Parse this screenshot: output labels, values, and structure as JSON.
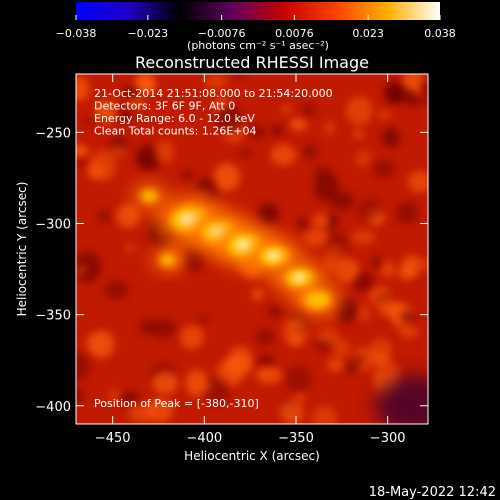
{
  "chart_data": {
    "type": "heatmap",
    "title": "Reconstructed RHESSI Image",
    "xlabel": "Heliocentric X (arcsec)",
    "ylabel": "Heliocentric Y (arcsec)",
    "xlim": [
      -470,
      -278
    ],
    "ylim": [
      -410,
      -218
    ],
    "x_ticks": [
      -450,
      -400,
      -350,
      -300
    ],
    "y_ticks": [
      -250,
      -300,
      -350,
      -400
    ],
    "x_tick_labels": [
      "−450",
      "−400",
      "−350",
      "−300"
    ],
    "y_tick_labels": [
      "−250",
      "−300",
      "−350",
      "−400"
    ],
    "colorbar": {
      "range": [
        -0.038,
        0.038
      ],
      "ticks": [
        -0.038,
        -0.023,
        -0.0076,
        0.0076,
        0.023,
        0.038
      ],
      "tick_labels": [
        "−0.038",
        "−0.023",
        "−0.0076",
        "0.0076",
        "0.023",
        "0.038"
      ],
      "unit_label": "(photons cm⁻² s⁻¹ asec⁻²)",
      "colors": [
        "#0000ff",
        "#1f00c8",
        "#000000",
        "#600060",
        "#c80000",
        "#ff4000",
        "#ffb000",
        "#ffffff"
      ]
    },
    "annotations": [
      "21-Oct-2014 21:51:08.000 to 21:54:20.000",
      "Detectors: 3F 6F 9F, Att 0",
      "Energy Range: 6.0 - 12.0 keV",
      "Clean     Total counts: 1.26E+04"
    ],
    "peak_label": "Position of Peak = [-380,-310]",
    "peak": [
      -380,
      -310
    ],
    "sources": [
      {
        "x": -408,
        "y": -298,
        "intensity": 1.0
      },
      {
        "x": -392,
        "y": -305,
        "intensity": 0.9
      },
      {
        "x": -378,
        "y": -312,
        "intensity": 0.92
      },
      {
        "x": -362,
        "y": -318,
        "intensity": 0.75
      },
      {
        "x": -348,
        "y": -330,
        "intensity": 0.72
      },
      {
        "x": -338,
        "y": -342,
        "intensity": 0.6
      },
      {
        "x": -430,
        "y": -285,
        "intensity": 0.35
      },
      {
        "x": -420,
        "y": -320,
        "intensity": 0.3
      }
    ],
    "grid": false
  },
  "timestamp": "18-May-2022 12:42"
}
